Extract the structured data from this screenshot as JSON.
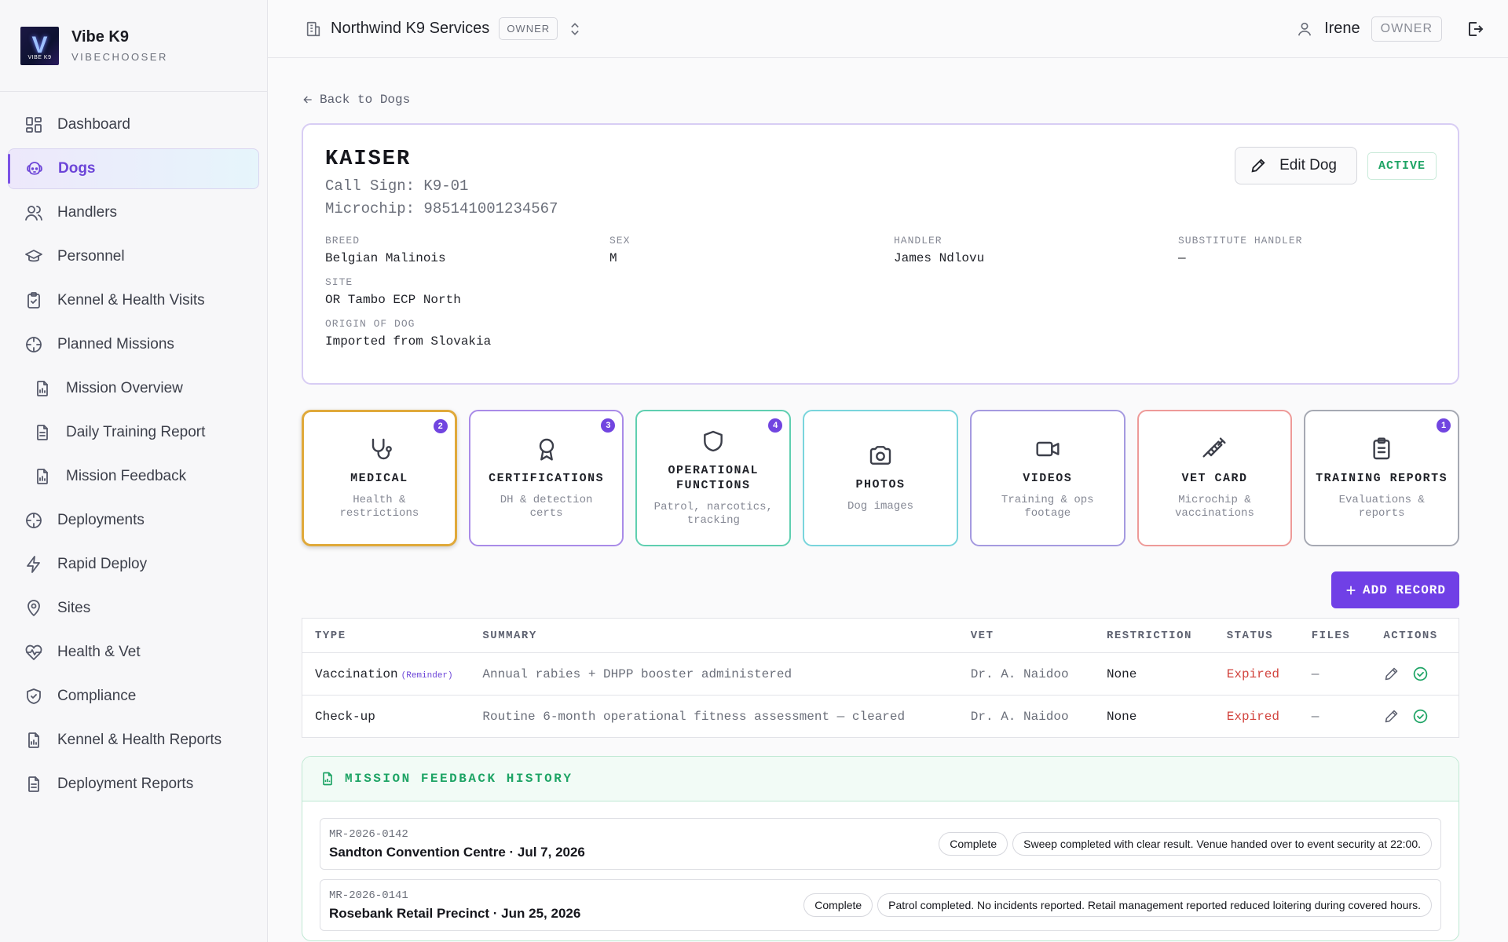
{
  "brand": {
    "name": "Vibe K9",
    "sub": "VIBECHOOSER",
    "logo_text": "VIBE K9",
    "logo_letter": "V"
  },
  "nav": [
    {
      "label": "Dashboard",
      "icon": "dashboard-icon"
    },
    {
      "label": "Dogs",
      "icon": "dog-icon",
      "active": true
    },
    {
      "label": "Handlers",
      "icon": "users-icon"
    },
    {
      "label": "Personnel",
      "icon": "graduation-cap-icon"
    },
    {
      "label": "Kennel & Health Visits",
      "icon": "clipboard-check-icon"
    },
    {
      "label": "Planned Missions",
      "icon": "crosshair-icon"
    },
    {
      "label": "Mission Overview",
      "icon": "file-chart-icon",
      "sub": true
    },
    {
      "label": "Daily Training Report",
      "icon": "file-text-icon",
      "sub": true
    },
    {
      "label": "Mission Feedback",
      "icon": "file-chart-icon",
      "sub": true
    },
    {
      "label": "Deployments",
      "icon": "crosshair-icon"
    },
    {
      "label": "Rapid Deploy",
      "icon": "lightning-icon"
    },
    {
      "label": "Sites",
      "icon": "map-pin-icon"
    },
    {
      "label": "Health & Vet",
      "icon": "heart-pulse-icon"
    },
    {
      "label": "Compliance",
      "icon": "shield-check-icon"
    },
    {
      "label": "Kennel & Health Reports",
      "icon": "file-chart-icon"
    },
    {
      "label": "Deployment Reports",
      "icon": "file-text-icon"
    }
  ],
  "topbar": {
    "org": "Northwind K9 Services",
    "org_role": "OWNER",
    "user": "Irene",
    "user_role": "OWNER"
  },
  "back_label": "Back to Dogs",
  "dog": {
    "name": "KAISER",
    "call_sign": "Call Sign: K9-01",
    "microchip": "Microchip: 985141001234567",
    "edit_label": "Edit Dog",
    "status": "ACTIVE",
    "fields": {
      "breed": {
        "label": "BREED",
        "value": "Belgian Malinois"
      },
      "sex": {
        "label": "SEX",
        "value": "M"
      },
      "handler": {
        "label": "HANDLER",
        "value": "James Ndlovu"
      },
      "substitute": {
        "label": "SUBSTITUTE HANDLER",
        "value": "—"
      },
      "site": {
        "label": "SITE",
        "value": "OR Tambo ECP North"
      },
      "origin": {
        "label": "ORIGIN OF DOG",
        "value": "Imported from Slovakia"
      }
    }
  },
  "tiles": [
    {
      "title": "MEDICAL",
      "desc": "Health & restrictions",
      "count": "2",
      "icon": "stethoscope-icon",
      "color": "#e0a93a",
      "selected": true
    },
    {
      "title": "CERTIFICATIONS",
      "desc": "DH & detection certs",
      "count": "3",
      "icon": "award-icon",
      "color": "#a98be8"
    },
    {
      "title": "OPERATIONAL FUNCTIONS",
      "desc": "Patrol, narcotics, tracking",
      "count": "4",
      "icon": "shield-icon",
      "color": "#5fcfb0"
    },
    {
      "title": "PHOTOS",
      "desc": "Dog images",
      "count": "",
      "icon": "camera-icon",
      "color": "#79d5dc"
    },
    {
      "title": "VIDEOS",
      "desc": "Training & ops footage",
      "count": "",
      "icon": "video-icon",
      "color": "#a59ae0"
    },
    {
      "title": "VET CARD",
      "desc": "Microchip & vaccinations",
      "count": "",
      "icon": "syringe-icon",
      "color": "#ee9a98"
    },
    {
      "title": "TRAINING REPORTS",
      "desc": "Evaluations & reports",
      "count": "1",
      "icon": "clipboard-list-icon",
      "color": "#a6a9b3"
    }
  ],
  "add_record_label": "ADD RECORD",
  "records": {
    "headers": [
      "TYPE",
      "SUMMARY",
      "VET",
      "RESTRICTION",
      "STATUS",
      "FILES",
      "ACTIONS"
    ],
    "rows": [
      {
        "type": "Vaccination",
        "tag": "(Reminder)",
        "summary": "Annual rabies + DHPP booster administered",
        "vet": "Dr. A. Naidoo",
        "restriction": "None",
        "status": "Expired",
        "files": "—"
      },
      {
        "type": "Check-up",
        "tag": "",
        "summary": "Routine 6-month operational fitness assessment — cleared",
        "vet": "Dr. A. Naidoo",
        "restriction": "None",
        "status": "Expired",
        "files": "—"
      }
    ]
  },
  "mission_feedback": {
    "title": "MISSION FEEDBACK HISTORY",
    "items": [
      {
        "id": "MR-2026-0142",
        "title": "Sandton Convention Centre · Jul 7, 2026",
        "status": "Complete",
        "note": "Sweep completed with clear result. Venue handed over to event security at 22:00."
      },
      {
        "id": "MR-2026-0141",
        "title": "Rosebank Retail Precinct · Jun 25, 2026",
        "status": "Complete",
        "note": "Patrol completed. No incidents reported. Retail management reported reduced loitering during covered hours."
      }
    ]
  },
  "colors": {
    "accent": "#7040e6",
    "success": "#1ea465",
    "danger": "#d2443e"
  }
}
